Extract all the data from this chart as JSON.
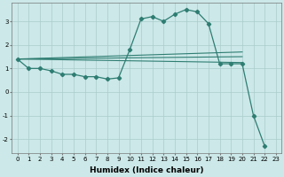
{
  "xlabel": "Humidex (Indice chaleur)",
  "background_color": "#cce8e8",
  "grid_color": "#aacccc",
  "line_color": "#2e7d72",
  "xlim": [
    -0.5,
    23.5
  ],
  "ylim": [
    -2.6,
    3.8
  ],
  "yticks": [
    -2,
    -1,
    0,
    1,
    2,
    3
  ],
  "x_ticks": [
    0,
    1,
    2,
    3,
    4,
    5,
    6,
    7,
    8,
    9,
    10,
    11,
    12,
    13,
    14,
    15,
    16,
    17,
    18,
    19,
    20,
    21,
    22,
    23
  ],
  "main_series": {
    "x": [
      0,
      1,
      2,
      3,
      4,
      5,
      6,
      7,
      8,
      9,
      10,
      11,
      12,
      13,
      14,
      15,
      16,
      17,
      18,
      19,
      20,
      21,
      22
    ],
    "y": [
      1.4,
      1.0,
      1.0,
      0.9,
      0.75,
      0.75,
      0.65,
      0.65,
      0.55,
      0.6,
      1.8,
      3.1,
      3.2,
      3.0,
      3.3,
      3.5,
      3.4,
      2.9,
      1.2,
      1.2,
      1.2,
      -1.0,
      -2.3
    ]
  },
  "regression_lines": [
    {
      "x": [
        0,
        20
      ],
      "y": [
        1.4,
        1.7
      ]
    },
    {
      "x": [
        0,
        20
      ],
      "y": [
        1.4,
        1.5
      ]
    },
    {
      "x": [
        0,
        20
      ],
      "y": [
        1.4,
        1.25
      ]
    }
  ]
}
